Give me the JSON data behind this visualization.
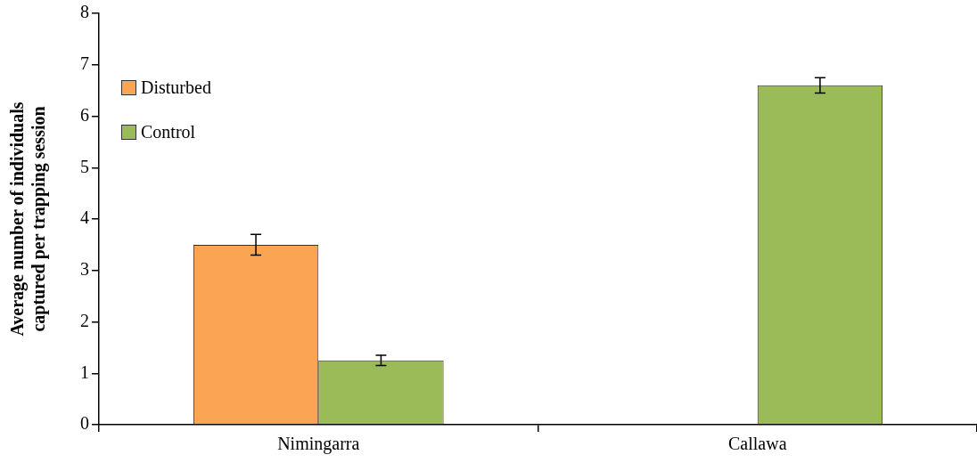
{
  "chart_data": {
    "type": "bar",
    "ylabel": "Average number of individuals captured per trapping session",
    "categories": [
      "Nimingarra",
      "Callawa"
    ],
    "series": [
      {
        "name": "Disturbed",
        "color": "#f9a553",
        "values": [
          3.5,
          null
        ],
        "errors": [
          0.2,
          null
        ]
      },
      {
        "name": "Control",
        "color": "#9bbb59",
        "values": [
          1.25,
          6.6
        ],
        "errors": [
          0.1,
          0.15
        ]
      }
    ],
    "ylim": [
      0,
      8
    ],
    "yticks": [
      0,
      1,
      2,
      3,
      4,
      5,
      6,
      7,
      8
    ],
    "grid": false,
    "legend": "top left"
  }
}
